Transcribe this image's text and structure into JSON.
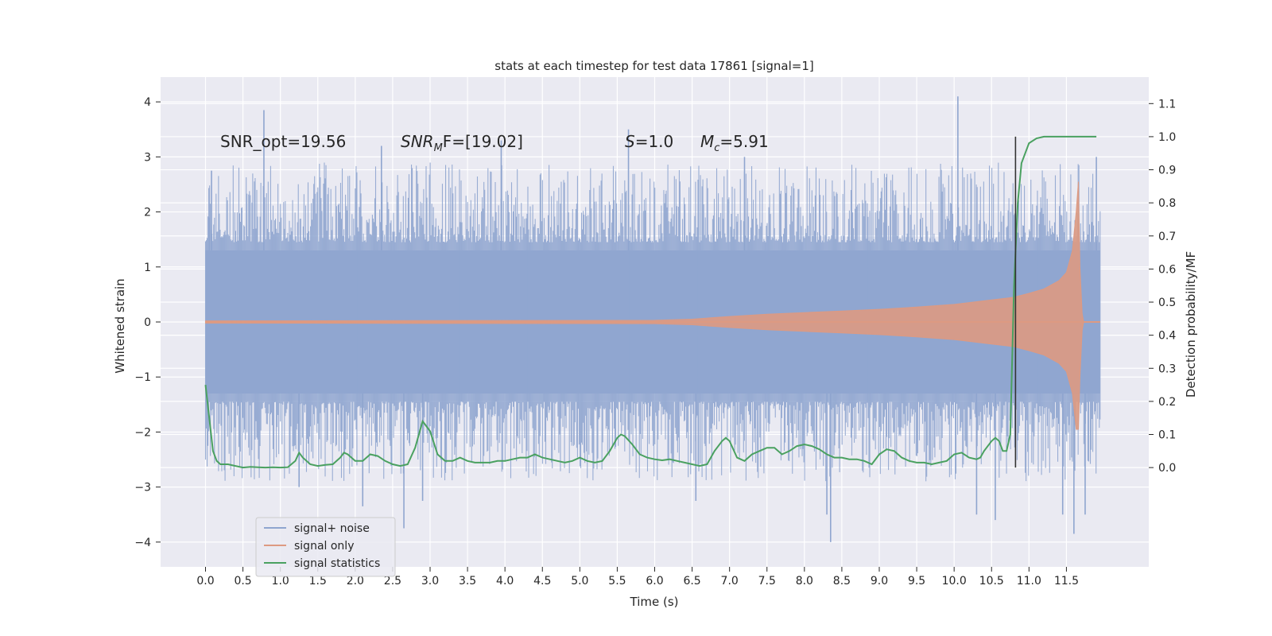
{
  "chart_data": {
    "type": "line",
    "title": "stats at each timestep for test data 17861 [signal=1]",
    "xlabel": "Time (s)",
    "ylabel": "Whitened strain",
    "ylabel_right": "Detection probability/MF",
    "xlim": [
      -0.6,
      12.6
    ],
    "ylim": [
      -4.45,
      4.45
    ],
    "ylim_right": [
      -0.3,
      1.18
    ],
    "x_ticks": [
      0.0,
      0.5,
      1.0,
      1.5,
      2.0,
      2.5,
      3.0,
      3.5,
      4.0,
      4.5,
      5.0,
      5.5,
      6.0,
      6.5,
      7.0,
      7.5,
      8.0,
      8.5,
      9.0,
      9.5,
      10.0,
      10.5,
      11.0,
      11.5
    ],
    "x_tick_labels": [
      "0.0",
      "0.5",
      "1.0",
      "1.5",
      "2.0",
      "2.5",
      "3.0",
      "3.5",
      "4.0",
      "4.5",
      "5.0",
      "5.5",
      "6.0",
      "6.5",
      "7.0",
      "7.5",
      "8.0",
      "8.5",
      "9.0",
      "9.5",
      "10.0",
      "10.5",
      "11.0",
      "11.5"
    ],
    "y_ticks": [
      4,
      3,
      2,
      1,
      0,
      -1,
      -2,
      -3,
      -4
    ],
    "y_tick_labels": [
      "4",
      "3",
      "2",
      "1",
      "0",
      "−1",
      "−2",
      "−3",
      "−4"
    ],
    "y2_ticks": [
      1.1,
      1.0,
      0.9,
      0.8,
      0.7,
      0.6,
      0.5,
      0.4,
      0.3,
      0.2,
      0.1,
      0.0
    ],
    "y2_tick_labels": [
      "1.1",
      "1.0",
      "0.9",
      "0.8",
      "0.7",
      "0.6",
      "0.5",
      "0.4",
      "0.3",
      "0.2",
      "0.1",
      "0.0"
    ],
    "annotations": {
      "snr_opt": "SNR_opt=19.56",
      "snr_mf_base": "SNR",
      "snr_mf_sub": "M",
      "snr_mf_rest": "F=[19.02]",
      "s_label": "S",
      "s_value": "=1.0",
      "mc_base": "M",
      "mc_sub": "c",
      "mc_value": "=5.91"
    },
    "noise_series": {
      "name": "signal+ noise",
      "color": "#8fa5cf",
      "t_start": 0.0,
      "t_end": 11.95,
      "band_upper": 1.3,
      "band_lower": -1.3,
      "spike_peaks": [
        [
          0.05,
          1.9
        ],
        [
          0.08,
          2.75
        ],
        [
          0.78,
          3.85
        ],
        [
          1.25,
          -3.0
        ],
        [
          2.1,
          -3.35
        ],
        [
          2.35,
          3.2
        ],
        [
          2.65,
          -3.75
        ],
        [
          2.9,
          -3.25
        ],
        [
          3.95,
          3.3
        ],
        [
          5.65,
          3.5
        ],
        [
          6.55,
          -3.25
        ],
        [
          7.2,
          3.0
        ],
        [
          8.3,
          -3.5
        ],
        [
          8.35,
          -4.0
        ],
        [
          10.05,
          4.1
        ],
        [
          10.3,
          -3.5
        ],
        [
          10.55,
          -3.6
        ],
        [
          11.45,
          -3.5
        ],
        [
          11.6,
          -3.85
        ],
        [
          11.75,
          -3.5
        ],
        [
          11.9,
          3.0
        ]
      ]
    },
    "signal_series": {
      "name": "signal only",
      "color": "#dd9a82",
      "envelope": [
        [
          0.0,
          0.02
        ],
        [
          6.0,
          0.03
        ],
        [
          6.5,
          0.05
        ],
        [
          7.0,
          0.1
        ],
        [
          7.5,
          0.14
        ],
        [
          8.0,
          0.17
        ],
        [
          8.5,
          0.2
        ],
        [
          9.0,
          0.23
        ],
        [
          9.5,
          0.27
        ],
        [
          10.0,
          0.32
        ],
        [
          10.5,
          0.4
        ],
        [
          10.8,
          0.45
        ],
        [
          11.0,
          0.52
        ],
        [
          11.2,
          0.6
        ],
        [
          11.4,
          0.75
        ],
        [
          11.5,
          0.9
        ],
        [
          11.58,
          1.3
        ],
        [
          11.63,
          2.0
        ],
        [
          11.66,
          2.55
        ],
        [
          11.68,
          1.0
        ],
        [
          11.71,
          0.15
        ],
        [
          11.73,
          0.0
        ],
        [
          11.95,
          0.0
        ]
      ],
      "lower_peak": -1.95
    },
    "stat_series": {
      "name": "signal statistics",
      "color": "#4aa160",
      "x": [
        0.0,
        0.05,
        0.1,
        0.15,
        0.2,
        0.3,
        0.4,
        0.5,
        0.6,
        0.7,
        0.8,
        0.9,
        1.0,
        1.1,
        1.2,
        1.25,
        1.3,
        1.4,
        1.5,
        1.6,
        1.7,
        1.8,
        1.85,
        1.9,
        2.0,
        2.1,
        2.2,
        2.3,
        2.4,
        2.5,
        2.6,
        2.7,
        2.8,
        2.9,
        3.0,
        3.1,
        3.2,
        3.3,
        3.4,
        3.5,
        3.6,
        3.7,
        3.8,
        3.9,
        4.0,
        4.1,
        4.2,
        4.3,
        4.4,
        4.5,
        4.6,
        4.7,
        4.8,
        4.9,
        5.0,
        5.1,
        5.2,
        5.3,
        5.4,
        5.5,
        5.55,
        5.6,
        5.7,
        5.8,
        5.9,
        6.0,
        6.1,
        6.2,
        6.3,
        6.4,
        6.5,
        6.6,
        6.7,
        6.8,
        6.9,
        6.95,
        7.0,
        7.1,
        7.2,
        7.3,
        7.4,
        7.5,
        7.6,
        7.7,
        7.8,
        7.9,
        8.0,
        8.1,
        8.2,
        8.3,
        8.4,
        8.5,
        8.6,
        8.7,
        8.8,
        8.9,
        9.0,
        9.1,
        9.2,
        9.3,
        9.4,
        9.5,
        9.6,
        9.7,
        9.8,
        9.9,
        10.0,
        10.1,
        10.2,
        10.3,
        10.35,
        10.4,
        10.5,
        10.55,
        10.6,
        10.65,
        10.7,
        10.75,
        10.8,
        10.85,
        10.9,
        11.0,
        11.1,
        11.2,
        11.5,
        11.8,
        11.9
      ],
      "y": [
        0.25,
        0.15,
        0.05,
        0.02,
        0.01,
        0.01,
        0.005,
        0.0,
        0.002,
        0.001,
        0.0,
        0.001,
        0.0,
        0.001,
        0.02,
        0.045,
        0.03,
        0.01,
        0.005,
        0.008,
        0.01,
        0.03,
        0.045,
        0.04,
        0.02,
        0.02,
        0.04,
        0.035,
        0.02,
        0.01,
        0.005,
        0.01,
        0.06,
        0.14,
        0.11,
        0.04,
        0.02,
        0.02,
        0.03,
        0.02,
        0.015,
        0.015,
        0.015,
        0.02,
        0.02,
        0.025,
        0.03,
        0.03,
        0.04,
        0.03,
        0.025,
        0.02,
        0.015,
        0.02,
        0.03,
        0.02,
        0.015,
        0.02,
        0.05,
        0.09,
        0.1,
        0.095,
        0.07,
        0.04,
        0.03,
        0.025,
        0.022,
        0.025,
        0.02,
        0.015,
        0.01,
        0.005,
        0.01,
        0.05,
        0.08,
        0.09,
        0.08,
        0.03,
        0.02,
        0.04,
        0.05,
        0.06,
        0.06,
        0.04,
        0.05,
        0.065,
        0.07,
        0.065,
        0.055,
        0.04,
        0.03,
        0.03,
        0.025,
        0.025,
        0.02,
        0.01,
        0.04,
        0.055,
        0.05,
        0.03,
        0.02,
        0.015,
        0.015,
        0.01,
        0.015,
        0.02,
        0.04,
        0.045,
        0.03,
        0.025,
        0.03,
        0.05,
        0.08,
        0.09,
        0.08,
        0.05,
        0.05,
        0.1,
        0.55,
        0.8,
        0.92,
        0.98,
        0.995,
        1.0,
        1.0,
        1.0,
        1.0
      ]
    },
    "vline": {
      "x": 10.82,
      "color": "#333333"
    },
    "legend": {
      "location": "lower-left",
      "entries": [
        {
          "label": "signal+ noise",
          "color": "#8fa5cf"
        },
        {
          "label": "signal only",
          "color": "#dd9a82"
        },
        {
          "label": "signal statistics",
          "color": "#4aa160"
        }
      ]
    },
    "background": "#eaeaf2",
    "grid": true
  }
}
